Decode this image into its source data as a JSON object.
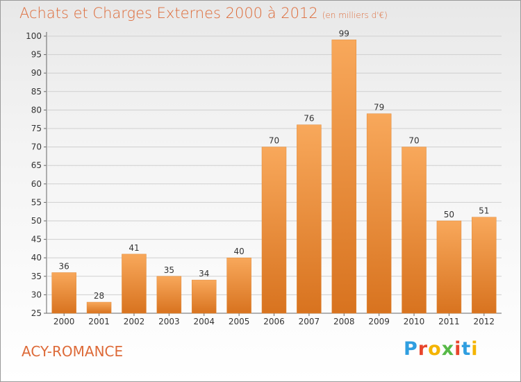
{
  "title": "Achats et Charges Externes 2000 à 2012",
  "subtitle": "(en milliers d'€)",
  "place": "ACY-ROMANCE",
  "brand": {
    "text": "Proxiti",
    "colors": [
      "#2f9ee0",
      "#e8452c",
      "#f4b400",
      "#57b947",
      "#e8452c",
      "#2f9ee0",
      "#f4b400"
    ]
  },
  "colors": {
    "bar_top": "#f8a85b",
    "bar_bottom": "#d8731f",
    "grid": "#cfcfcf",
    "accent": "#dd6a38"
  },
  "chart_data": {
    "type": "bar",
    "categories": [
      "2000",
      "2001",
      "2002",
      "2003",
      "2004",
      "2005",
      "2006",
      "2007",
      "2008",
      "2009",
      "2010",
      "2011",
      "2012"
    ],
    "values": [
      36,
      28,
      41,
      35,
      34,
      40,
      70,
      76,
      99,
      79,
      70,
      50,
      51
    ],
    "ylim": [
      25,
      100
    ],
    "yticks": [
      25,
      30,
      35,
      40,
      45,
      50,
      55,
      60,
      65,
      70,
      75,
      80,
      85,
      90,
      95,
      100
    ],
    "grid": true
  }
}
